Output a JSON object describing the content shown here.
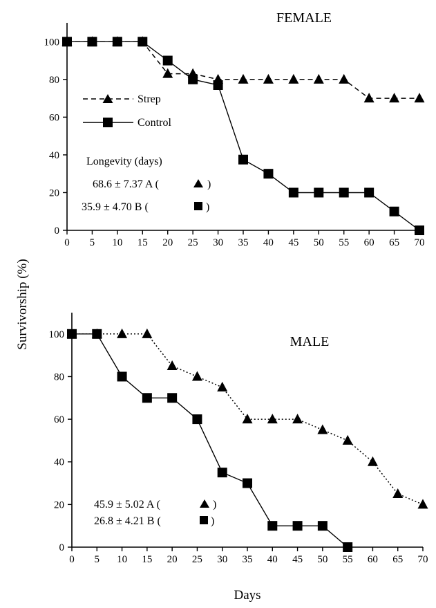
{
  "y_axis_label": "Survivorship (%)",
  "x_axis_label": "Days",
  "chart_data": [
    {
      "type": "line",
      "title": "FEMALE",
      "xlabel": "",
      "ylabel": "",
      "x": [
        0,
        5,
        10,
        15,
        20,
        25,
        30,
        35,
        40,
        45,
        50,
        55,
        60,
        65,
        70
      ],
      "x_ticks": [
        0,
        5,
        10,
        15,
        20,
        25,
        30,
        35,
        40,
        45,
        50,
        55,
        60,
        65,
        70
      ],
      "y_ticks": [
        0,
        20,
        40,
        60,
        80,
        100
      ],
      "xlim": [
        0,
        70
      ],
      "ylim": [
        0,
        110
      ],
      "grid": false,
      "legend_position": "upper-left",
      "series": [
        {
          "name": "Strep",
          "marker": "triangle",
          "line_style": "dashed",
          "values": [
            100,
            100,
            100,
            100,
            83,
            83,
            80,
            80,
            80,
            80,
            80,
            80,
            70,
            70,
            70
          ]
        },
        {
          "name": "Control",
          "marker": "square",
          "line_style": "solid",
          "values": [
            100,
            100,
            100,
            100,
            90,
            80,
            77,
            37.5,
            30,
            20,
            20,
            20,
            20,
            10,
            0
          ]
        }
      ],
      "annotations": {
        "heading": "Longevity (days)",
        "strep_text": "68.6 ± 7.37 A (",
        "control_text": "35.9 ± 4.70 B  (",
        "close": ")"
      }
    },
    {
      "type": "line",
      "title": "MALE",
      "xlabel": "",
      "ylabel": "",
      "x": [
        0,
        5,
        10,
        15,
        20,
        25,
        30,
        35,
        40,
        45,
        50,
        55,
        60,
        65,
        70
      ],
      "x_ticks": [
        0,
        5,
        10,
        15,
        20,
        25,
        30,
        35,
        40,
        45,
        50,
        55,
        60,
        65,
        70
      ],
      "y_ticks": [
        0,
        20,
        40,
        60,
        80,
        100
      ],
      "xlim": [
        0,
        70
      ],
      "ylim": [
        0,
        110
      ],
      "grid": false,
      "series": [
        {
          "name": "Strep",
          "marker": "triangle",
          "line_style": "dotted",
          "values": [
            100,
            100,
            100,
            100,
            85,
            80,
            75,
            60,
            60,
            60,
            55,
            50,
            40,
            25,
            20
          ]
        },
        {
          "name": "Control",
          "marker": "square",
          "line_style": "solid",
          "values": [
            100,
            100,
            80,
            70,
            70,
            60,
            35,
            30,
            10,
            10,
            10,
            0,
            null,
            null,
            null
          ]
        }
      ],
      "annotations": {
        "strep_text": "45.9 ± 5.02   A (",
        "control_text": "26.8 ± 4.21   B (",
        "close": ")"
      }
    }
  ]
}
